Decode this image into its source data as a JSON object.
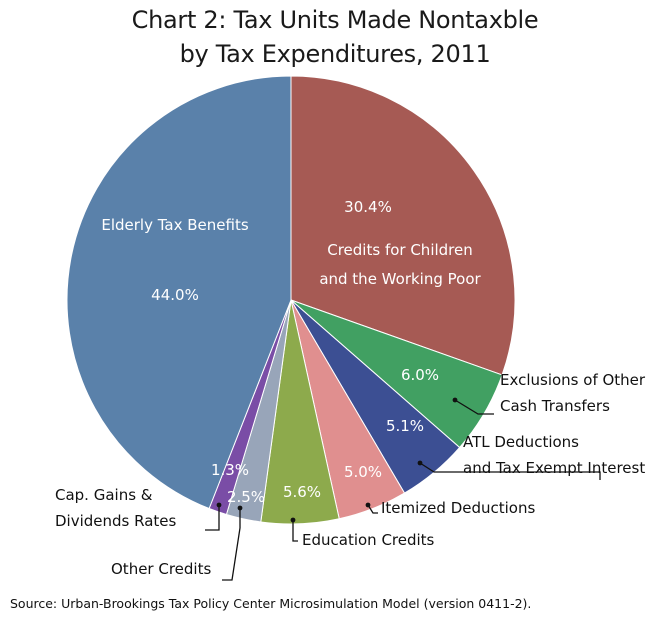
{
  "chart_data": {
    "type": "pie",
    "title_lines": [
      "Chart 2: Tax Units Made Nontaxble",
      "by Tax Expenditures, 2011"
    ],
    "start": "12 o'clock",
    "direction": "clockwise",
    "slices": [
      {
        "label_lines": [
          "Credits for Children",
          "and the Working Poor"
        ],
        "value": 30.4,
        "value_label": "30.4%",
        "color": "#a65a54"
      },
      {
        "label_lines": [
          "Exclusions of Other",
          "Cash Transfers"
        ],
        "value": 6.0,
        "value_label": "6.0%",
        "color": "#41a062"
      },
      {
        "label_lines": [
          "ATL Deductions",
          "and Tax Exempt Interest"
        ],
        "value": 5.1,
        "value_label": "5.1%",
        "color": "#3c4f93"
      },
      {
        "label_lines": [
          "Itemized Deductions"
        ],
        "value": 5.0,
        "value_label": "5.0%",
        "color": "#e08f8f"
      },
      {
        "label_lines": [
          "Education Credits"
        ],
        "value": 5.6,
        "value_label": "5.6%",
        "color": "#8daa4c"
      },
      {
        "label_lines": [
          "Other Credits"
        ],
        "value": 2.5,
        "value_label": "2.5%",
        "color": "#98a5b9"
      },
      {
        "label_lines": [
          "Cap. Gains &",
          "Dividends Rates"
        ],
        "value": 1.3,
        "value_label": "1.3%",
        "color": "#7a4da6"
      },
      {
        "label_lines": [
          "Elderly Tax Benefits"
        ],
        "value": 44.0,
        "value_label": "44.0%",
        "color": "#5a81aa"
      }
    ]
  },
  "source": "Source: Urban-Brookings Tax Policy Center Microsimulation Model (version 0411-2)."
}
